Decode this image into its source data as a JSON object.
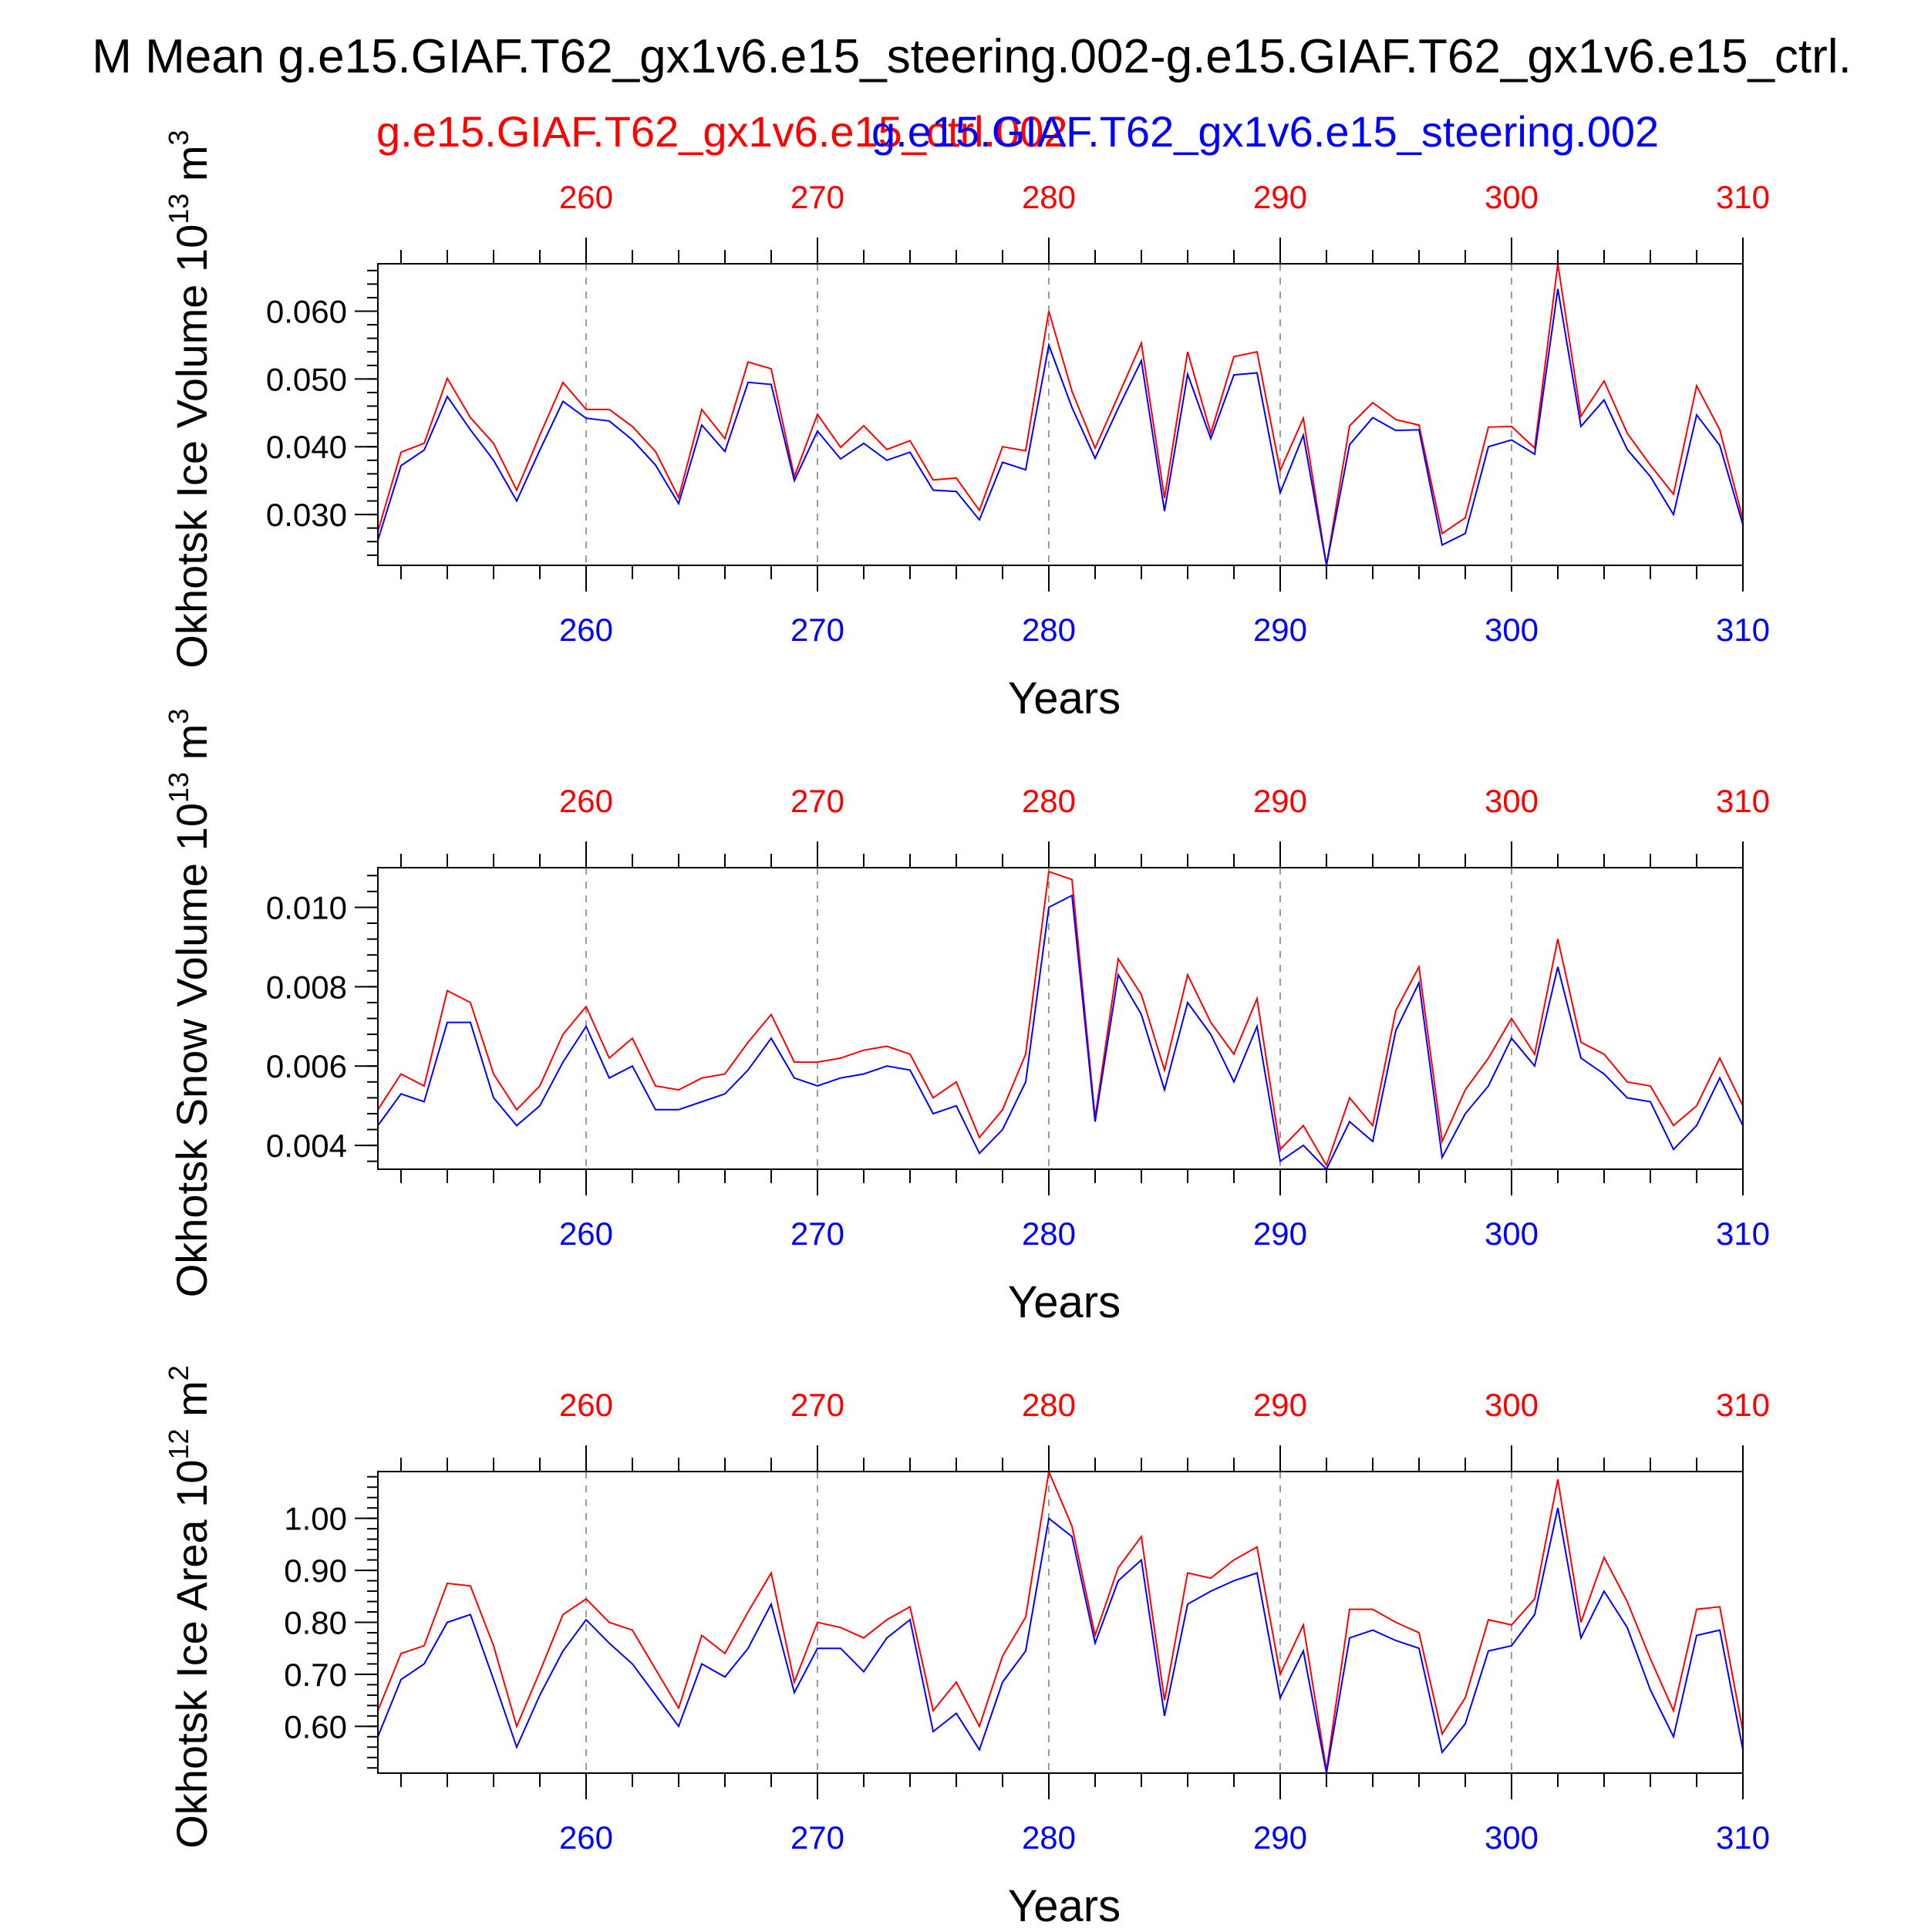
{
  "title": "M Mean g.e15.GIAF.T62_gx1v6.e15_steering.002-g.e15.GIAF.T62_gx1v6.e15_ctrl.",
  "legend": {
    "red_label": "g.e15.GIAF.T62_gx1v6.e15_ctrl.002",
    "blue_label": "g.e15.GIAF.T62_gx1v6.e15_steering.002",
    "red_color": "#ff0000",
    "blue_color": "#0000ff"
  },
  "xlabel": "Years",
  "chart_data": [
    {
      "type": "line",
      "ylabel": "Okhotsk Ice Volume 10",
      "ylabel_exp": "13",
      "ylabel_unit": " m",
      "ylabel_unit_exp": "3",
      "xlabel": "Years",
      "xlim": [
        251,
        310
      ],
      "ylim": [
        0.0225,
        0.067
      ],
      "yticks": [
        0.03,
        0.04,
        0.05,
        0.06
      ],
      "ytick_labels": [
        "0.030",
        "0.040",
        "0.050",
        "0.060"
      ],
      "xticks": [
        260,
        270,
        280,
        290,
        300,
        310
      ],
      "xtick_labels": [
        "260",
        "270",
        "280",
        "290",
        "300",
        "310"
      ],
      "x": [
        251,
        252,
        253,
        254,
        255,
        256,
        257,
        258,
        259,
        260,
        261,
        262,
        263,
        264,
        265,
        266,
        267,
        268,
        269,
        270,
        271,
        272,
        273,
        274,
        275,
        276,
        277,
        278,
        279,
        280,
        281,
        282,
        283,
        284,
        285,
        286,
        287,
        288,
        289,
        290,
        291,
        292,
        293,
        294,
        295,
        296,
        297,
        298,
        299,
        300,
        301,
        302,
        303,
        304,
        305,
        306,
        307,
        308,
        309,
        310
      ],
      "series": [
        {
          "name": "g.e15.GIAF.T62_gx1v6.e15_ctrl.002",
          "color": "#ff0000",
          "values": [
            0.0275,
            0.0392,
            0.0405,
            0.0501,
            0.0443,
            0.0405,
            0.0336,
            0.0417,
            0.0495,
            0.0455,
            0.0455,
            0.043,
            0.0393,
            0.0325,
            0.0455,
            0.0412,
            0.0525,
            0.0515,
            0.0356,
            0.0448,
            0.0399,
            0.0431,
            0.0396,
            0.0409,
            0.0351,
            0.0354,
            0.0306,
            0.04,
            0.0394,
            0.06,
            0.0482,
            0.0398,
            0.0475,
            0.0553,
            0.0324,
            0.054,
            0.042,
            0.0533,
            0.054,
            0.0365,
            0.0442,
            0.0225,
            0.0431,
            0.0465,
            0.044,
            0.0432,
            0.0272,
            0.0295,
            0.0429,
            0.043,
            0.0398,
            0.067,
            0.0445,
            0.0497,
            0.042,
            0.0373,
            0.033,
            0.049,
            0.0425,
            0.0293
          ]
        },
        {
          "name": "g.e15.GIAF.T62_gx1v6.e15_steering.002",
          "color": "#0000ff",
          "values": [
            0.0262,
            0.0372,
            0.0395,
            0.0474,
            0.0425,
            0.038,
            0.032,
            0.0395,
            0.0467,
            0.0442,
            0.0438,
            0.041,
            0.0373,
            0.0316,
            0.0432,
            0.0393,
            0.0495,
            0.0492,
            0.035,
            0.0423,
            0.0382,
            0.0405,
            0.038,
            0.0392,
            0.0336,
            0.0334,
            0.0292,
            0.0377,
            0.0366,
            0.055,
            0.0458,
            0.0383,
            0.0457,
            0.0527,
            0.0305,
            0.0507,
            0.0412,
            0.0506,
            0.0509,
            0.0332,
            0.0417,
            0.0225,
            0.0403,
            0.0443,
            0.0424,
            0.0425,
            0.0255,
            0.0272,
            0.04,
            0.041,
            0.0389,
            0.0633,
            0.043,
            0.0469,
            0.0396,
            0.0356,
            0.03,
            0.0447,
            0.0402,
            0.0285
          ]
        }
      ]
    },
    {
      "type": "line",
      "ylabel": "Okhotsk Snow Volume 10",
      "ylabel_exp": "13",
      "ylabel_unit": " m",
      "ylabel_unit_exp": "3",
      "xlabel": "Years",
      "xlim": [
        251,
        310
      ],
      "ylim": [
        0.0034,
        0.011
      ],
      "yticks": [
        0.004,
        0.006,
        0.008,
        0.01
      ],
      "ytick_labels": [
        "0.004",
        "0.006",
        "0.008",
        "0.010"
      ],
      "xticks": [
        260,
        270,
        280,
        290,
        300,
        310
      ],
      "xtick_labels": [
        "260",
        "270",
        "280",
        "290",
        "300",
        "310"
      ],
      "x": [
        251,
        252,
        253,
        254,
        255,
        256,
        257,
        258,
        259,
        260,
        261,
        262,
        263,
        264,
        265,
        266,
        267,
        268,
        269,
        270,
        271,
        272,
        273,
        274,
        275,
        276,
        277,
        278,
        279,
        280,
        281,
        282,
        283,
        284,
        285,
        286,
        287,
        288,
        289,
        290,
        291,
        292,
        293,
        294,
        295,
        296,
        297,
        298,
        299,
        300,
        301,
        302,
        303,
        304,
        305,
        306,
        307,
        308,
        309,
        310
      ],
      "series": [
        {
          "name": "g.e15.GIAF.T62_gx1v6.e15_ctrl.002",
          "color": "#ff0000",
          "values": [
            0.0049,
            0.0058,
            0.0055,
            0.0079,
            0.0076,
            0.0058,
            0.0049,
            0.0055,
            0.0068,
            0.0075,
            0.0062,
            0.0067,
            0.0055,
            0.0054,
            0.0057,
            0.0058,
            0.0066,
            0.0073,
            0.0061,
            0.0061,
            0.0062,
            0.0064,
            0.0065,
            0.0063,
            0.0052,
            0.0056,
            0.0042,
            0.0049,
            0.0063,
            0.0109,
            0.0107,
            0.0047,
            0.0087,
            0.0078,
            0.0059,
            0.0083,
            0.0071,
            0.0063,
            0.0077,
            0.0039,
            0.0045,
            0.0035,
            0.0052,
            0.0045,
            0.0074,
            0.0085,
            0.0041,
            0.0054,
            0.0062,
            0.0072,
            0.0063,
            0.0092,
            0.0066,
            0.0063,
            0.0056,
            0.0055,
            0.0045,
            0.005,
            0.0062,
            0.005
          ]
        },
        {
          "name": "g.e15.GIAF.T62_gx1v6.e15_steering.002",
          "color": "#0000ff",
          "values": [
            0.0045,
            0.0053,
            0.0051,
            0.0071,
            0.0071,
            0.0052,
            0.0045,
            0.005,
            0.0061,
            0.007,
            0.0057,
            0.006,
            0.0049,
            0.0049,
            0.0051,
            0.0053,
            0.0059,
            0.0067,
            0.0057,
            0.0055,
            0.0057,
            0.0058,
            0.006,
            0.0059,
            0.0048,
            0.005,
            0.0038,
            0.0044,
            0.0056,
            0.01,
            0.0103,
            0.0046,
            0.0083,
            0.0073,
            0.0054,
            0.0076,
            0.0068,
            0.0056,
            0.007,
            0.0036,
            0.004,
            0.0034,
            0.0046,
            0.0041,
            0.0069,
            0.0081,
            0.0037,
            0.0048,
            0.0055,
            0.0067,
            0.006,
            0.0085,
            0.0062,
            0.0058,
            0.0052,
            0.0051,
            0.0039,
            0.0045,
            0.0057,
            0.0045
          ]
        }
      ]
    },
    {
      "type": "line",
      "ylabel": "Okhotsk Ice Area 10",
      "ylabel_exp": "12",
      "ylabel_unit": " m",
      "ylabel_unit_exp": "2",
      "xlabel": "Years",
      "xlim": [
        251,
        310
      ],
      "ylim": [
        0.51,
        1.09
      ],
      "yticks": [
        0.6,
        0.7,
        0.8,
        0.9,
        1.0
      ],
      "ytick_labels": [
        "0.60",
        "0.70",
        "0.80",
        "0.90",
        "1.00"
      ],
      "xticks": [
        260,
        270,
        280,
        290,
        300,
        310
      ],
      "xtick_labels": [
        "260",
        "270",
        "280",
        "290",
        "300",
        "310"
      ],
      "x": [
        251,
        252,
        253,
        254,
        255,
        256,
        257,
        258,
        259,
        260,
        261,
        262,
        263,
        264,
        265,
        266,
        267,
        268,
        269,
        270,
        271,
        272,
        273,
        274,
        275,
        276,
        277,
        278,
        279,
        280,
        281,
        282,
        283,
        284,
        285,
        286,
        287,
        288,
        289,
        290,
        291,
        292,
        293,
        294,
        295,
        296,
        297,
        298,
        299,
        300,
        301,
        302,
        303,
        304,
        305,
        306,
        307,
        308,
        309,
        310
      ],
      "series": [
        {
          "name": "g.e15.GIAF.T62_gx1v6.e15_ctrl.002",
          "color": "#ff0000",
          "values": [
            0.63,
            0.74,
            0.755,
            0.875,
            0.87,
            0.755,
            0.6,
            0.705,
            0.815,
            0.845,
            0.8,
            0.785,
            0.71,
            0.635,
            0.775,
            0.74,
            0.82,
            0.895,
            0.685,
            0.8,
            0.79,
            0.77,
            0.805,
            0.83,
            0.63,
            0.685,
            0.6,
            0.735,
            0.81,
            1.09,
            0.985,
            0.775,
            0.905,
            0.965,
            0.65,
            0.895,
            0.885,
            0.92,
            0.945,
            0.7,
            0.795,
            0.515,
            0.825,
            0.825,
            0.8,
            0.78,
            0.585,
            0.655,
            0.805,
            0.795,
            0.845,
            1.075,
            0.8,
            0.925,
            0.84,
            0.73,
            0.63,
            0.825,
            0.83,
            0.59
          ]
        },
        {
          "name": "g.e15.GIAF.T62_gx1v6.e15_steering.002",
          "color": "#0000ff",
          "values": [
            0.58,
            0.69,
            0.72,
            0.8,
            0.815,
            0.69,
            0.56,
            0.66,
            0.745,
            0.805,
            0.76,
            0.72,
            0.66,
            0.6,
            0.72,
            0.695,
            0.75,
            0.835,
            0.665,
            0.75,
            0.75,
            0.705,
            0.77,
            0.805,
            0.59,
            0.625,
            0.555,
            0.685,
            0.745,
            1.0,
            0.965,
            0.76,
            0.88,
            0.92,
            0.62,
            0.835,
            0.86,
            0.88,
            0.895,
            0.655,
            0.745,
            0.51,
            0.77,
            0.785,
            0.765,
            0.75,
            0.55,
            0.605,
            0.745,
            0.755,
            0.815,
            1.02,
            0.77,
            0.86,
            0.79,
            0.67,
            0.58,
            0.775,
            0.785,
            0.555
          ]
        }
      ]
    }
  ]
}
